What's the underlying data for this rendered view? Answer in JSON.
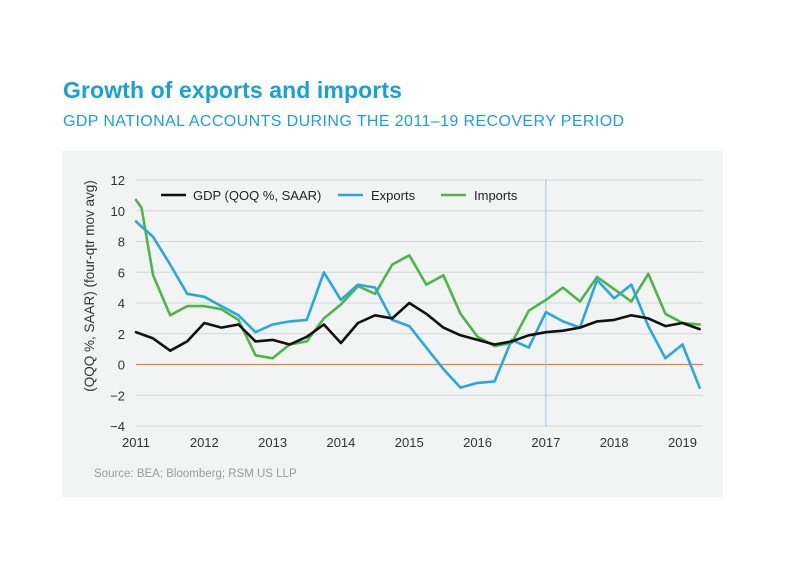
{
  "header": {
    "title": "Growth of exports and imports",
    "subtitle": "GDP NATIONAL ACCOUNTS DURING THE 2011–19 RECOVERY PERIOD"
  },
  "source": "Source: BEA; Bloomberg; RSM US LLP",
  "colors": {
    "title": "#1aa0d8",
    "gdp": "#111111",
    "exports": "#29a8e0",
    "imports": "#4eb548",
    "zero_line": "#e8803a",
    "marker_line": "#8fc4e0"
  },
  "chart_data": {
    "type": "line",
    "title": "",
    "xlabel": "",
    "ylabel": "(QQQ %, SAAR) (four-qtr mov avg)",
    "xlim": [
      2011,
      2019.3
    ],
    "ylim": [
      -4,
      12
    ],
    "yticks": [
      "12",
      "10",
      "8",
      "6",
      "4",
      "2",
      "0",
      "−2",
      "−4"
    ],
    "ytick_values": [
      12,
      10,
      8,
      6,
      4,
      2,
      0,
      -2,
      -4
    ],
    "xticks": [
      "2011",
      "2012",
      "2013",
      "2014",
      "2015",
      "2016",
      "2017",
      "2018",
      "2019"
    ],
    "xtick_values": [
      2011,
      2012,
      2013,
      2014,
      2015,
      2016,
      2017,
      2018,
      2019
    ],
    "reference_lines": {
      "horizontal": 0,
      "vertical": 2017
    },
    "legend_position": "top-left",
    "series": [
      {
        "name": "GDP (QOQ %, SAAR)",
        "points": [
          [
            2011.0,
            2.1
          ],
          [
            2011.25,
            1.7
          ],
          [
            2011.5,
            0.9
          ],
          [
            2011.75,
            1.5
          ],
          [
            2012.0,
            2.7
          ],
          [
            2012.25,
            2.4
          ],
          [
            2012.5,
            2.6
          ],
          [
            2012.75,
            1.5
          ],
          [
            2013.0,
            1.6
          ],
          [
            2013.25,
            1.3
          ],
          [
            2013.5,
            1.8
          ],
          [
            2013.75,
            2.6
          ],
          [
            2014.0,
            1.4
          ],
          [
            2014.25,
            2.7
          ],
          [
            2014.5,
            3.2
          ],
          [
            2014.75,
            3.0
          ],
          [
            2015.0,
            4.0
          ],
          [
            2015.25,
            3.3
          ],
          [
            2015.5,
            2.4
          ],
          [
            2015.75,
            1.9
          ],
          [
            2016.0,
            1.6
          ],
          [
            2016.25,
            1.3
          ],
          [
            2016.5,
            1.5
          ],
          [
            2016.75,
            1.9
          ],
          [
            2017.0,
            2.1
          ],
          [
            2017.25,
            2.2
          ],
          [
            2017.5,
            2.4
          ],
          [
            2017.75,
            2.8
          ],
          [
            2018.0,
            2.9
          ],
          [
            2018.25,
            3.2
          ],
          [
            2018.5,
            3.0
          ],
          [
            2018.75,
            2.5
          ],
          [
            2019.0,
            2.7
          ],
          [
            2019.25,
            2.3
          ]
        ]
      },
      {
        "name": "Exports",
        "points": [
          [
            2011.0,
            9.3
          ],
          [
            2011.25,
            8.3
          ],
          [
            2011.5,
            6.5
          ],
          [
            2011.75,
            4.6
          ],
          [
            2012.0,
            4.4
          ],
          [
            2012.25,
            3.8
          ],
          [
            2012.5,
            3.2
          ],
          [
            2012.75,
            2.1
          ],
          [
            2013.0,
            2.6
          ],
          [
            2013.25,
            2.8
          ],
          [
            2013.5,
            2.9
          ],
          [
            2013.75,
            6.0
          ],
          [
            2014.0,
            4.2
          ],
          [
            2014.25,
            5.2
          ],
          [
            2014.5,
            5.0
          ],
          [
            2014.75,
            2.9
          ],
          [
            2015.0,
            2.5
          ],
          [
            2015.25,
            1.1
          ],
          [
            2015.5,
            -0.3
          ],
          [
            2015.75,
            -1.5
          ],
          [
            2016.0,
            -1.2
          ],
          [
            2016.25,
            -1.1
          ],
          [
            2016.5,
            1.6
          ],
          [
            2016.75,
            1.1
          ],
          [
            2017.0,
            3.4
          ],
          [
            2017.25,
            2.8
          ],
          [
            2017.5,
            2.4
          ],
          [
            2017.75,
            5.5
          ],
          [
            2018.0,
            4.3
          ],
          [
            2018.25,
            5.2
          ],
          [
            2018.5,
            2.5
          ],
          [
            2018.75,
            0.4
          ],
          [
            2019.0,
            1.3
          ],
          [
            2019.25,
            -1.5
          ]
        ]
      },
      {
        "name": "Imports",
        "points": [
          [
            2011.0,
            10.7
          ],
          [
            2011.08,
            10.2
          ],
          [
            2011.25,
            5.8
          ],
          [
            2011.5,
            3.2
          ],
          [
            2011.75,
            3.8
          ],
          [
            2012.0,
            3.8
          ],
          [
            2012.25,
            3.6
          ],
          [
            2012.5,
            2.9
          ],
          [
            2012.75,
            0.6
          ],
          [
            2013.0,
            0.4
          ],
          [
            2013.25,
            1.3
          ],
          [
            2013.5,
            1.5
          ],
          [
            2013.75,
            3.0
          ],
          [
            2014.0,
            3.9
          ],
          [
            2014.25,
            5.1
          ],
          [
            2014.5,
            4.6
          ],
          [
            2014.75,
            6.5
          ],
          [
            2015.0,
            7.1
          ],
          [
            2015.25,
            5.2
          ],
          [
            2015.5,
            5.8
          ],
          [
            2015.75,
            3.3
          ],
          [
            2016.0,
            1.8
          ],
          [
            2016.25,
            1.2
          ],
          [
            2016.5,
            1.4
          ],
          [
            2016.75,
            3.5
          ],
          [
            2017.0,
            4.2
          ],
          [
            2017.25,
            5.0
          ],
          [
            2017.5,
            4.1
          ],
          [
            2017.75,
            5.7
          ],
          [
            2018.0,
            4.9
          ],
          [
            2018.25,
            4.1
          ],
          [
            2018.5,
            5.9
          ],
          [
            2018.75,
            3.3
          ],
          [
            2019.0,
            2.7
          ],
          [
            2019.25,
            2.6
          ]
        ]
      }
    ]
  }
}
